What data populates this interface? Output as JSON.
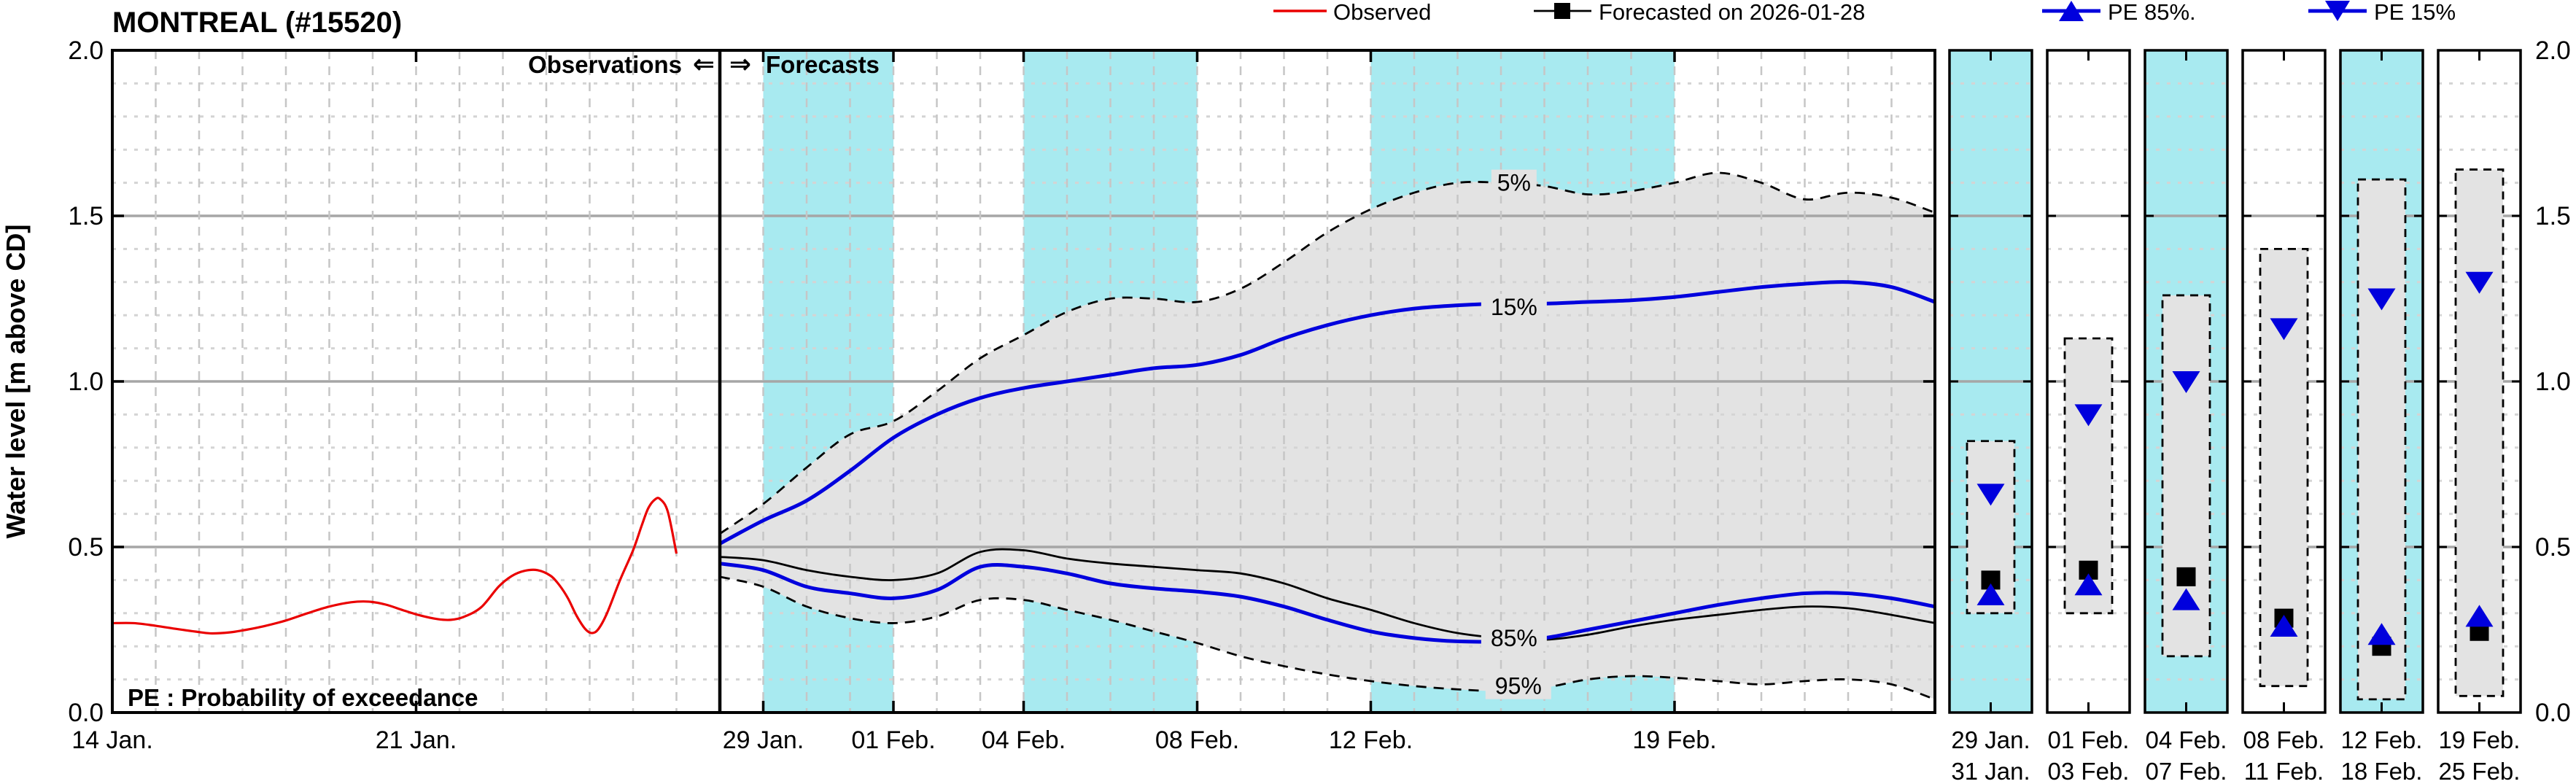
{
  "title": "MONTREAL (#15520)",
  "station": {
    "name": "MONTREAL",
    "id": "#15520"
  },
  "legend": [
    {
      "label": "Observed",
      "marker": "line",
      "color": "#ea0000"
    },
    {
      "label": "Forecasted on 2026-01-28",
      "marker": "line-square",
      "color": "#000000"
    },
    {
      "label": "PE 85%.",
      "marker": "line-triangle-up",
      "color": "#0000dd"
    },
    {
      "label": "PE 15%",
      "marker": "line-triangle-down",
      "color": "#0000dd"
    }
  ],
  "annotations": {
    "observations": "Observations",
    "arrow_left": "⇐",
    "arrow_right": "⇒",
    "forecasts": "Forecasts",
    "pe_note": "PE : Probability of exceedance"
  },
  "y_axis": {
    "title": "Water level [m above CD]",
    "tick_labels": [
      "2.0",
      "1.5",
      "1.0",
      "0.5",
      "0.0"
    ],
    "tick_values": [
      2.0,
      1.5,
      1.0,
      0.5,
      0.0
    ],
    "min": 0.0,
    "max": 2.0,
    "major_step": 0.5,
    "minor_step": 0.1
  },
  "x_axis": {
    "ticks": [
      {
        "label": "14 Jan.",
        "day": -14
      },
      {
        "label": "21 Jan.",
        "day": -7
      },
      {
        "label": "29 Jan.",
        "day": 1
      },
      {
        "label": "01 Feb.",
        "day": 4
      },
      {
        "label": "04 Feb.",
        "day": 7
      },
      {
        "label": "08 Feb.",
        "day": 11
      },
      {
        "label": "12 Feb.",
        "day": 15
      },
      {
        "label": "19 Feb.",
        "day": 22
      }
    ]
  },
  "colors": {
    "observed": "#ea0000",
    "forecast": "#000000",
    "pe_blue": "#0000dd",
    "band_cyan": "#a8eaf0",
    "fan_gray": "#e3e3e3",
    "grid_major": "#a6a6a6",
    "grid_minor": "#d4d4d4",
    "grid_day": "#c6c6c6"
  },
  "chart_data": {
    "type": "line",
    "title": "MONTREAL (#15520)",
    "ylabel": "Water level [m above CD]",
    "ylim": [
      0.0,
      2.0
    ],
    "x_unit": "days relative to forecast issue date 2026-01-28",
    "xlim": [
      -14,
      28
    ],
    "divider_day": 0,
    "shaded_day_bands": [
      [
        1,
        4
      ],
      [
        7,
        11
      ],
      [
        15,
        22
      ]
    ],
    "observed": {
      "name": "Observed",
      "points": [
        [
          -14,
          0.27
        ],
        [
          -13.5,
          0.27
        ],
        [
          -13,
          0.262
        ],
        [
          -12.5,
          0.252
        ],
        [
          -12,
          0.243
        ],
        [
          -11.7,
          0.239
        ],
        [
          -11.3,
          0.242
        ],
        [
          -11,
          0.248
        ],
        [
          -10.5,
          0.261
        ],
        [
          -10,
          0.278
        ],
        [
          -9.5,
          0.3
        ],
        [
          -9,
          0.32
        ],
        [
          -8.5,
          0.333
        ],
        [
          -8.1,
          0.335
        ],
        [
          -7.7,
          0.326
        ],
        [
          -7.3,
          0.309
        ],
        [
          -6.9,
          0.293
        ],
        [
          -6.5,
          0.282
        ],
        [
          -6.2,
          0.28
        ],
        [
          -5.9,
          0.289
        ],
        [
          -5.5,
          0.318
        ],
        [
          -5.1,
          0.38
        ],
        [
          -4.8,
          0.412
        ],
        [
          -4.5,
          0.428
        ],
        [
          -4.2,
          0.43
        ],
        [
          -3.9,
          0.413
        ],
        [
          -3.7,
          0.385
        ],
        [
          -3.5,
          0.345
        ],
        [
          -3.3,
          0.292
        ],
        [
          -3.1,
          0.252
        ],
        [
          -2.95,
          0.24
        ],
        [
          -2.8,
          0.252
        ],
        [
          -2.6,
          0.3
        ],
        [
          -2.3,
          0.4
        ],
        [
          -2.0,
          0.49
        ],
        [
          -1.8,
          0.565
        ],
        [
          -1.65,
          0.617
        ],
        [
          -1.5,
          0.643
        ],
        [
          -1.38,
          0.645
        ],
        [
          -1.2,
          0.607
        ],
        [
          -1.0,
          0.48
        ]
      ]
    },
    "forecast_days": [
      0,
      1,
      2,
      3,
      4,
      5,
      6,
      7,
      8,
      9,
      10,
      11,
      12,
      13,
      14,
      15,
      16,
      17,
      18,
      19,
      20,
      21,
      22,
      23,
      24,
      25,
      26,
      27,
      28
    ],
    "forecast_series": [
      {
        "name": "PE 5%",
        "style": "dashed",
        "color": "#000000",
        "values": [
          0.54,
          0.63,
          0.74,
          0.84,
          0.88,
          0.97,
          1.07,
          1.14,
          1.21,
          1.25,
          1.25,
          1.24,
          1.28,
          1.36,
          1.45,
          1.52,
          1.57,
          1.6,
          1.6,
          1.59,
          1.565,
          1.575,
          1.6,
          1.63,
          1.6,
          1.55,
          1.57,
          1.555,
          1.51
        ]
      },
      {
        "name": "PE 15%",
        "style": "solid",
        "color": "#0000dd",
        "values": [
          0.51,
          0.58,
          0.64,
          0.73,
          0.83,
          0.9,
          0.95,
          0.98,
          1.0,
          1.02,
          1.04,
          1.05,
          1.08,
          1.13,
          1.17,
          1.2,
          1.22,
          1.23,
          1.235,
          1.235,
          1.24,
          1.245,
          1.255,
          1.27,
          1.285,
          1.295,
          1.3,
          1.285,
          1.24
        ]
      },
      {
        "name": "Forecasted on 2026-01-28",
        "style": "solid",
        "color": "#000000",
        "values": [
          0.47,
          0.46,
          0.43,
          0.41,
          0.4,
          0.42,
          0.485,
          0.49,
          0.465,
          0.45,
          0.44,
          0.43,
          0.42,
          0.39,
          0.345,
          0.31,
          0.27,
          0.24,
          0.225,
          0.22,
          0.235,
          0.26,
          0.28,
          0.295,
          0.31,
          0.32,
          0.315,
          0.295,
          0.27
        ]
      },
      {
        "name": "PE 85%",
        "style": "solid",
        "color": "#0000dd",
        "values": [
          0.45,
          0.43,
          0.38,
          0.36,
          0.345,
          0.37,
          0.44,
          0.44,
          0.42,
          0.39,
          0.375,
          0.365,
          0.35,
          0.32,
          0.28,
          0.245,
          0.225,
          0.215,
          0.215,
          0.225,
          0.25,
          0.275,
          0.3,
          0.325,
          0.345,
          0.36,
          0.36,
          0.345,
          0.32
        ]
      },
      {
        "name": "PE 95%",
        "style": "dashed",
        "color": "#000000",
        "values": [
          0.41,
          0.38,
          0.32,
          0.285,
          0.27,
          0.29,
          0.34,
          0.34,
          0.31,
          0.28,
          0.245,
          0.21,
          0.17,
          0.14,
          0.115,
          0.095,
          0.08,
          0.07,
          0.065,
          0.075,
          0.1,
          0.11,
          0.105,
          0.095,
          0.085,
          0.095,
          0.1,
          0.085,
          0.04
        ]
      }
    ],
    "curve_labels": [
      {
        "text": "5%",
        "day": 18.3,
        "value": 1.6,
        "color": "#000000"
      },
      {
        "text": "15%",
        "day": 18.3,
        "value": 1.225,
        "color": "#0000dd"
      },
      {
        "text": "85%",
        "day": 18.3,
        "value": 0.225,
        "color": "#0000dd"
      },
      {
        "text": "95%",
        "day": 18.4,
        "value": 0.08,
        "color": "#000000"
      }
    ],
    "panels": [
      {
        "top_label": "29 Jan.",
        "bottom_label": "31 Jan.",
        "shaded": true,
        "range_5_95": [
          0.3,
          0.82
        ],
        "pe15": 0.66,
        "forecast": 0.4,
        "pe85": 0.355
      },
      {
        "top_label": "01 Feb.",
        "bottom_label": "03 Feb.",
        "shaded": false,
        "range_5_95": [
          0.3,
          1.13
        ],
        "pe15": 0.9,
        "forecast": 0.43,
        "pe85": 0.385
      },
      {
        "top_label": "04 Feb.",
        "bottom_label": "07 Feb.",
        "shaded": true,
        "range_5_95": [
          0.17,
          1.26
        ],
        "pe15": 1.0,
        "forecast": 0.41,
        "pe85": 0.34
      },
      {
        "top_label": "08 Feb.",
        "bottom_label": "11 Feb.",
        "shaded": false,
        "range_5_95": [
          0.08,
          1.4
        ],
        "pe15": 1.16,
        "forecast": 0.285,
        "pe85": 0.26
      },
      {
        "top_label": "12 Feb.",
        "bottom_label": "18 Feb.",
        "shaded": true,
        "range_5_95": [
          0.04,
          1.61
        ],
        "pe15": 1.25,
        "forecast": 0.2,
        "pe85": 0.235
      },
      {
        "top_label": "19 Feb.",
        "bottom_label": "25 Feb.",
        "shaded": false,
        "range_5_95": [
          0.05,
          1.64
        ],
        "pe15": 1.3,
        "forecast": 0.245,
        "pe85": 0.29
      }
    ]
  }
}
